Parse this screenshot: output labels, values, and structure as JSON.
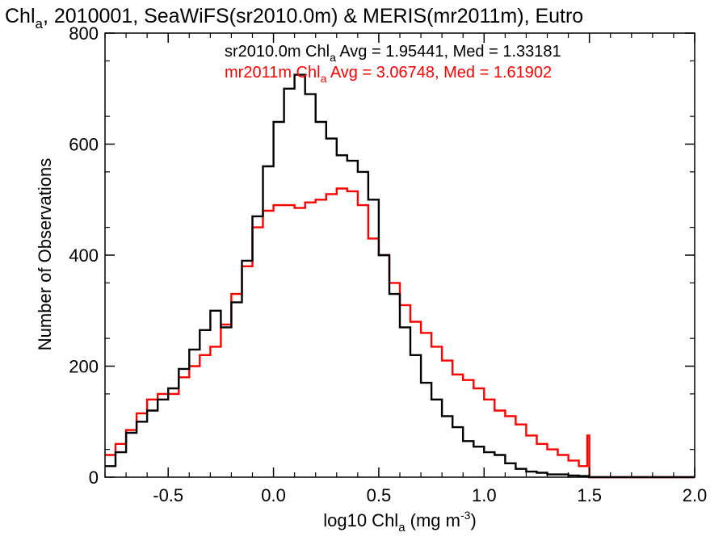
{
  "chart_data": {
    "type": "line",
    "step": true,
    "title": "Chl_a, 2010001, SeaWiFS(sr2010.0m) & MERIS(mr2011m), Eutro",
    "title_parts": {
      "p1": "Chl",
      "p1_sub": "a",
      "p2": ", 2010001, SeaWiFS(sr2010.0m) & MERIS(mr2011m), Eutro"
    },
    "xlabel": "log10 Chl_a (mg m^-3)",
    "xlabel_parts": {
      "p1": "log10 Chl",
      "p1_sub": "a",
      "p2": " (mg m",
      "p2_sup": "-3",
      "p3": ")"
    },
    "ylabel": "Number of Observations",
    "xlim": [
      -0.8,
      2.0
    ],
    "ylim": [
      0,
      800
    ],
    "xticks": [
      "-0.5",
      "0.0",
      "0.5",
      "1.0",
      "1.5",
      "2.0"
    ],
    "yticks": [
      "0",
      "200",
      "400",
      "600",
      "800"
    ],
    "grid": false,
    "legend_placement": "top-center",
    "colors": {
      "sr2010": "#000000",
      "mr2011": "#ff0000",
      "axes": "#000000"
    },
    "annotations": [
      {
        "text": "sr2010.0m Chl_a Avg = 1.95441, Med = 1.33181",
        "p1": "sr2010.0m Chl",
        "p1_sub": "a",
        "p2": " Avg = 1.95441, Med = 1.33181",
        "color": "#000000"
      },
      {
        "text": "mr2011m Chl_a Avg = 3.06748, Med = 1.61902",
        "p1": "mr2011m Chl",
        "p1_sub": "a",
        "p2": " Avg = 3.06748, Med = 1.61902",
        "color": "#ff0000"
      }
    ],
    "series": [
      {
        "color": "#000000",
        "x": [
          -0.8,
          -0.75,
          -0.7,
          -0.65,
          -0.6,
          -0.55,
          -0.5,
          -0.45,
          -0.4,
          -0.35,
          -0.3,
          -0.25,
          -0.2,
          -0.15,
          -0.1,
          -0.05,
          0.0,
          0.05,
          0.1,
          0.15,
          0.2,
          0.25,
          0.3,
          0.35,
          0.4,
          0.45,
          0.5,
          0.55,
          0.6,
          0.65,
          0.7,
          0.75,
          0.8,
          0.85,
          0.9,
          0.95,
          1.0,
          1.05,
          1.1,
          1.15,
          1.2,
          1.25,
          1.3,
          1.35,
          1.4,
          1.45,
          1.5,
          1.6,
          1.8,
          2.0
        ],
        "values": [
          20,
          45,
          80,
          100,
          120,
          140,
          160,
          195,
          230,
          265,
          300,
          270,
          315,
          390,
          470,
          560,
          640,
          700,
          725,
          690,
          640,
          610,
          580,
          570,
          550,
          500,
          400,
          330,
          270,
          220,
          170,
          140,
          110,
          90,
          65,
          55,
          45,
          40,
          25,
          15,
          10,
          8,
          5,
          5,
          3,
          2,
          0,
          0,
          0,
          0
        ]
      },
      {
        "color": "#ff0000",
        "x": [
          -0.8,
          -0.75,
          -0.7,
          -0.65,
          -0.6,
          -0.55,
          -0.5,
          -0.45,
          -0.4,
          -0.35,
          -0.3,
          -0.25,
          -0.2,
          -0.15,
          -0.1,
          -0.05,
          0.0,
          0.05,
          0.1,
          0.15,
          0.2,
          0.25,
          0.3,
          0.35,
          0.4,
          0.45,
          0.5,
          0.55,
          0.6,
          0.65,
          0.7,
          0.75,
          0.8,
          0.85,
          0.9,
          0.95,
          1.0,
          1.05,
          1.1,
          1.15,
          1.2,
          1.25,
          1.3,
          1.35,
          1.4,
          1.45,
          1.49,
          1.5,
          1.6,
          1.8,
          2.0
        ],
        "values": [
          40,
          60,
          85,
          115,
          140,
          150,
          150,
          180,
          200,
          220,
          235,
          275,
          330,
          380,
          450,
          480,
          490,
          490,
          485,
          495,
          500,
          510,
          520,
          515,
          490,
          430,
          400,
          350,
          310,
          280,
          260,
          235,
          210,
          185,
          175,
          160,
          140,
          120,
          110,
          95,
          75,
          60,
          50,
          40,
          30,
          20,
          75,
          0,
          0,
          0,
          0
        ]
      }
    ]
  }
}
